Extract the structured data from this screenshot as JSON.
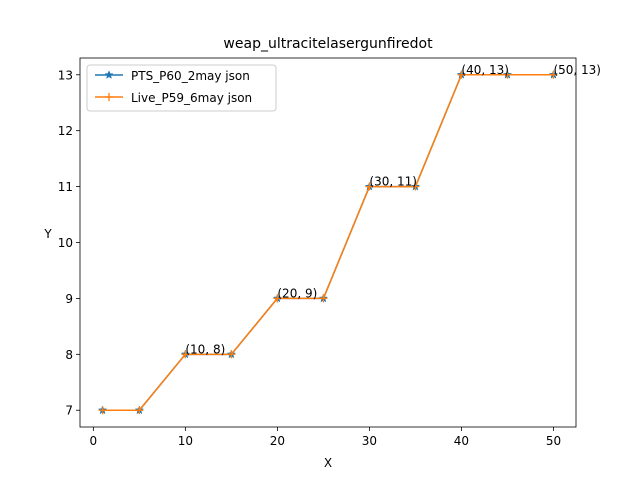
{
  "chart_data": {
    "type": "line",
    "title": "weap_ultracitelasergunfiredot",
    "xlabel": "X",
    "ylabel": "Y",
    "xlim": [
      -1.45,
      52.45
    ],
    "ylim": [
      6.7,
      13.3
    ],
    "xticks": [
      0,
      10,
      20,
      30,
      40,
      50
    ],
    "yticks": [
      7,
      8,
      9,
      10,
      11,
      12,
      13
    ],
    "grid": false,
    "legend_position": "upper-left",
    "series": [
      {
        "name": "PTS_P60_2may json",
        "color": "#1f77b4",
        "marker": "star",
        "x": [
          1,
          5,
          10,
          15,
          20,
          25,
          30,
          35,
          40,
          45,
          50
        ],
        "y": [
          7,
          7,
          8,
          8,
          9,
          9,
          11,
          11,
          13,
          13,
          13
        ]
      },
      {
        "name": "Live_P59_6may json",
        "color": "#ff7f0e",
        "marker": "plus",
        "x": [
          1,
          5,
          10,
          15,
          20,
          25,
          30,
          35,
          40,
          45,
          50
        ],
        "y": [
          7,
          7,
          8,
          8,
          9,
          9,
          11,
          11,
          13,
          13,
          13
        ]
      }
    ],
    "annotations": [
      {
        "x": 10,
        "y": 8,
        "text": "(10, 8)"
      },
      {
        "x": 20,
        "y": 9,
        "text": "(20, 9)"
      },
      {
        "x": 30,
        "y": 11,
        "text": "(30, 11)"
      },
      {
        "x": 40,
        "y": 13,
        "text": "(40, 13)"
      },
      {
        "x": 50,
        "y": 13,
        "text": "(50, 13)"
      }
    ]
  }
}
